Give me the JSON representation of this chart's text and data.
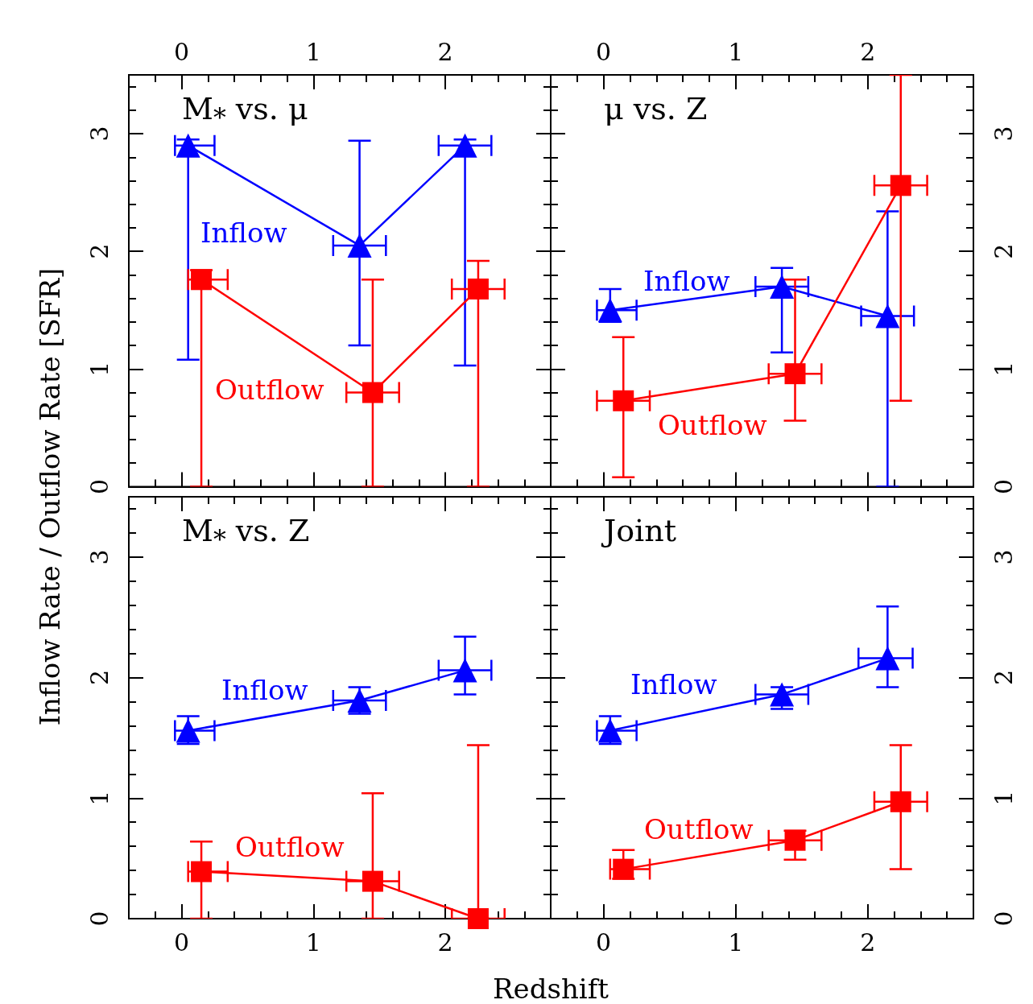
{
  "chart_data": [
    {
      "type": "line",
      "title": "M$_{*}$ vs. μ",
      "xlabel": "Redshift",
      "ylabel": "Inflow Rate / Outflow Rate [SFR]",
      "xlim": [
        -0.4,
        2.8
      ],
      "xticks": [
        0,
        1,
        2
      ],
      "ylim": [
        0,
        3.5
      ],
      "yticks": [
        0,
        1,
        2,
        3
      ],
      "line_style": "solid",
      "series": [
        {
          "name": "Inflow",
          "color": "#0000ff",
          "marker": "triangle",
          "x": [
            0.05,
            1.35,
            2.15
          ],
          "values": [
            2.9,
            2.05,
            2.9
          ],
          "errors": [
            [
              1.08,
              2.95
            ],
            [
              1.2,
              2.94
            ],
            [
              1.03,
              2.95
            ]
          ],
          "xerrors": [
            [
              -0.05,
              0.25
            ],
            [
              1.15,
              1.55
            ],
            [
              1.95,
              2.35
            ]
          ]
        },
        {
          "name": "Outflow",
          "color": "#ff0000",
          "marker": "square",
          "x": [
            0.15,
            1.45,
            2.25
          ],
          "values": [
            1.76,
            0.8,
            1.68
          ],
          "errors": [
            [
              0,
              1.84
            ],
            [
              0,
              1.76
            ],
            [
              0,
              1.92
            ]
          ],
          "xerrors": [
            [
              0.05,
              0.35
            ],
            [
              1.25,
              1.65
            ],
            [
              2.05,
              2.45
            ]
          ]
        }
      ]
    },
    {
      "type": "line",
      "title": "μ vs. Z",
      "xlim": [
        -0.4,
        2.8
      ],
      "xticks": [
        0,
        1,
        2
      ],
      "ylim": [
        0,
        3.5
      ],
      "yticks": [
        0,
        1,
        2,
        3
      ],
      "line_style": "solid",
      "series": [
        {
          "name": "Inflow",
          "color": "#0000ff",
          "marker": "triangle",
          "x": [
            0.05,
            1.35,
            2.15
          ],
          "values": [
            1.5,
            1.7,
            1.45
          ],
          "errors": [
            [
              1.4,
              1.68
            ],
            [
              1.14,
              1.86
            ],
            [
              0,
              2.34
            ]
          ],
          "xerrors": [
            [
              -0.05,
              0.25
            ],
            [
              1.15,
              1.55
            ],
            [
              1.95,
              2.35
            ]
          ]
        },
        {
          "name": "Outflow",
          "color": "#ff0000",
          "marker": "square",
          "x": [
            0.15,
            1.45,
            2.25
          ],
          "values": [
            0.73,
            0.96,
            2.56
          ],
          "errors": [
            [
              0.08,
              1.27
            ],
            [
              0.56,
              1.76
            ],
            [
              0.73,
              3.5
            ]
          ],
          "xerrors": [
            [
              -0.05,
              0.35
            ],
            [
              1.25,
              1.65
            ],
            [
              2.05,
              2.45
            ]
          ]
        }
      ]
    },
    {
      "type": "line",
      "title": "M$_{*}$ vs. Z",
      "xlim": [
        -0.4,
        2.8
      ],
      "xticks": [
        0,
        1,
        2
      ],
      "ylim": [
        0,
        3.5
      ],
      "yticks": [
        0,
        1,
        2,
        3
      ],
      "line_style": "solid",
      "series": [
        {
          "name": "Inflow",
          "color": "#0000ff",
          "marker": "triangle",
          "x": [
            0.05,
            1.35,
            2.15
          ],
          "values": [
            1.56,
            1.81,
            2.06
          ],
          "errors": [
            [
              1.45,
              1.68
            ],
            [
              1.7,
              1.92
            ],
            [
              1.86,
              2.34
            ]
          ],
          "xerrors": [
            [
              -0.05,
              0.25
            ],
            [
              1.15,
              1.55
            ],
            [
              1.95,
              2.35
            ]
          ]
        },
        {
          "name": "Outflow",
          "color": "#ff0000",
          "marker": "square",
          "x": [
            0.15,
            1.45,
            2.25
          ],
          "values": [
            0.39,
            0.31,
            0
          ],
          "errors": [
            [
              0,
              0.64
            ],
            [
              0,
              1.04
            ],
            [
              0,
              1.44
            ]
          ],
          "xerrors": [
            [
              0.05,
              0.35
            ],
            [
              1.25,
              1.65
            ],
            [
              2.05,
              2.45
            ]
          ]
        }
      ]
    },
    {
      "type": "line",
      "title": "Joint",
      "xlim": [
        -0.4,
        2.8
      ],
      "xticks": [
        0,
        1,
        2
      ],
      "ylim": [
        0,
        3.5
      ],
      "yticks": [
        0,
        1,
        2,
        3
      ],
      "line_style": "solid",
      "series": [
        {
          "name": "Inflow",
          "color": "#0000ff",
          "marker": "triangle",
          "x": [
            0.05,
            1.35,
            2.15
          ],
          "values": [
            1.56,
            1.86,
            2.16
          ],
          "errors": [
            [
              1.45,
              1.68
            ],
            [
              1.74,
              1.92
            ],
            [
              1.92,
              2.59
            ]
          ],
          "xerrors": [
            [
              -0.05,
              0.25
            ],
            [
              1.15,
              1.55
            ],
            [
              1.93,
              2.34
            ]
          ]
        },
        {
          "name": "Outflow",
          "color": "#ff0000",
          "marker": "square",
          "x": [
            0.15,
            1.45,
            2.25
          ],
          "values": [
            0.41,
            0.65,
            0.97
          ],
          "errors": [
            [
              0.33,
              0.57
            ],
            [
              0.49,
              0.73
            ],
            [
              0.41,
              1.44
            ]
          ],
          "xerrors": [
            [
              0.05,
              0.35
            ],
            [
              1.25,
              1.65
            ],
            [
              2.05,
              2.45
            ]
          ]
        }
      ]
    }
  ]
}
